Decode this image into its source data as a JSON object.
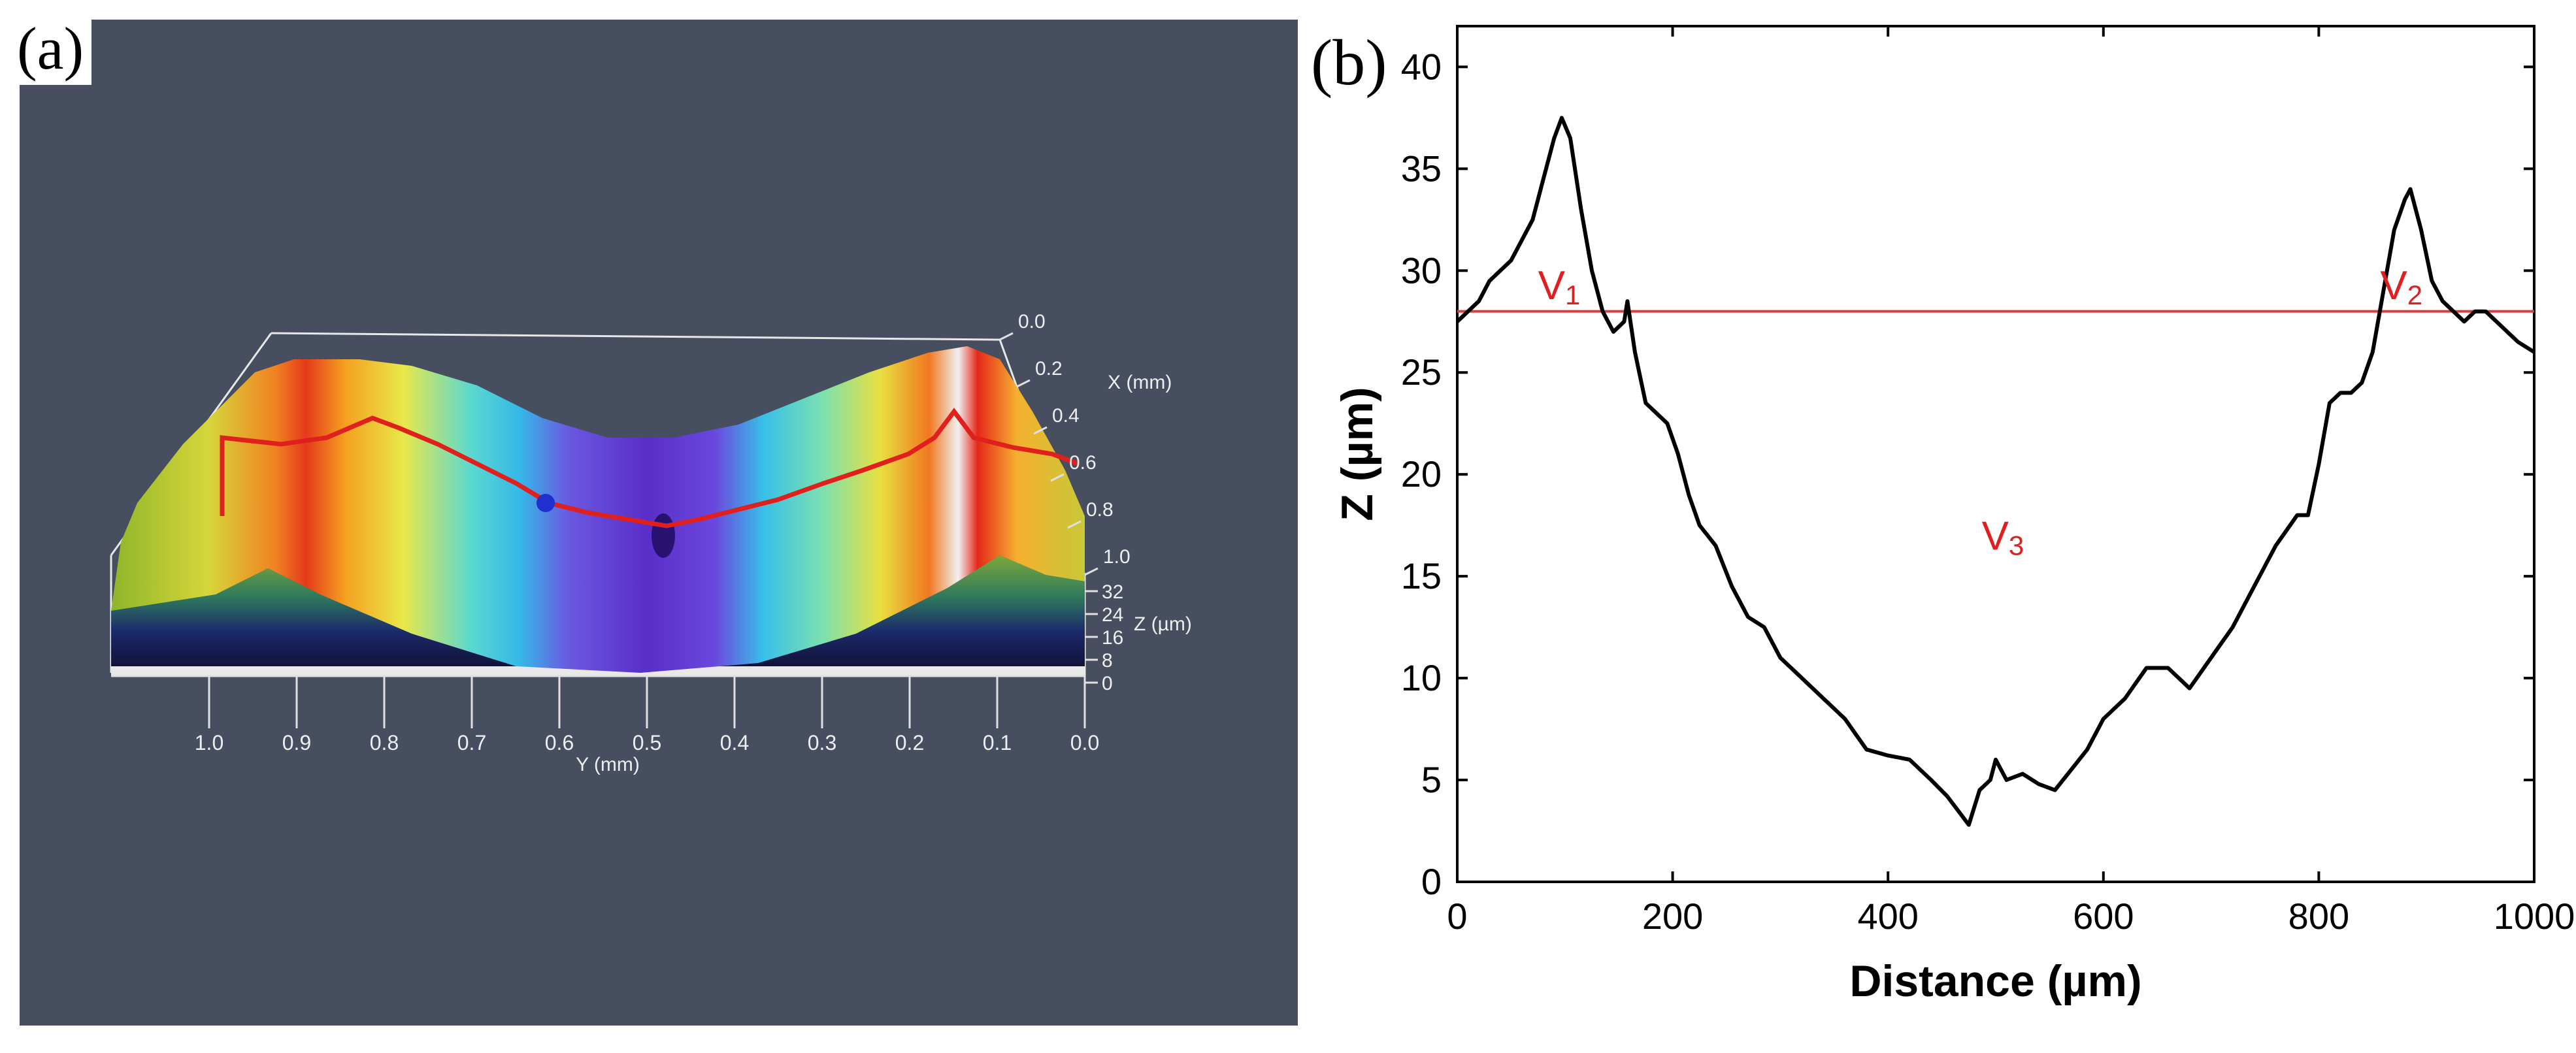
{
  "panel_a": {
    "label": "(a)",
    "x_axis": {
      "label": "X (mm)",
      "ticks": [
        "0.0",
        "0.2",
        "0.4",
        "0.6",
        "0.8",
        "1.0"
      ]
    },
    "y_axis": {
      "label": "Y (mm)",
      "ticks": [
        "1.0",
        "0.9",
        "0.8",
        "0.7",
        "0.6",
        "0.5",
        "0.4",
        "0.3",
        "0.2",
        "0.1",
        "0.0"
      ]
    },
    "z_axis": {
      "label": "Z (µm)",
      "ticks": [
        "32",
        "24",
        "16",
        "8",
        "0"
      ]
    },
    "colors": {
      "background": "#474e60",
      "profile_line": "#e0201c",
      "marker": "#1f2fd0"
    }
  },
  "panel_b": {
    "label": "(b)",
    "annotations": {
      "v1": "V",
      "v1_sub": "1",
      "v2": "V",
      "v2_sub": "2",
      "v3": "V",
      "v3_sub": "3"
    }
  },
  "chart_data": {
    "type": "line",
    "xlabel": "Distance (µm)",
    "ylabel": "Z (µm)",
    "xlim": [
      0,
      1000
    ],
    "ylim": [
      0,
      42
    ],
    "xticks": [
      0,
      200,
      400,
      600,
      800,
      1000
    ],
    "yticks": [
      0,
      5,
      10,
      15,
      20,
      25,
      30,
      35,
      40
    ],
    "grid": false,
    "series": [
      {
        "color": "#000000",
        "x": [
          0,
          10,
          20,
          30,
          40,
          50,
          60,
          70,
          80,
          90,
          97,
          105,
          115,
          125,
          135,
          145,
          155,
          158,
          165,
          175,
          185,
          195,
          205,
          215,
          225,
          240,
          255,
          270,
          285,
          300,
          320,
          340,
          360,
          380,
          400,
          420,
          440,
          455,
          465,
          475,
          485,
          495,
          500,
          510,
          525,
          540,
          555,
          570,
          585,
          600,
          620,
          640,
          660,
          680,
          700,
          720,
          740,
          760,
          780,
          790,
          800,
          810,
          820,
          830,
          840,
          850,
          860,
          870,
          880,
          885,
          895,
          905,
          915,
          925,
          935,
          945,
          955,
          965,
          975,
          985,
          1000
        ],
        "y": [
          27.5,
          28,
          28.5,
          29.5,
          30,
          30.5,
          31.5,
          32.5,
          34.5,
          36.5,
          37.5,
          36.5,
          33,
          30,
          28,
          27,
          27.5,
          28.5,
          26,
          23.5,
          23,
          22.5,
          21,
          19,
          17.5,
          16.5,
          14.5,
          13,
          12.5,
          11,
          10,
          9,
          8,
          6.5,
          6.2,
          6,
          5,
          4.2,
          3.5,
          2.8,
          4.5,
          5,
          6,
          5,
          5.3,
          4.8,
          4.5,
          5.5,
          6.5,
          8,
          9,
          10.5,
          10.5,
          9.5,
          11,
          12.5,
          14.5,
          16.5,
          18,
          18,
          20.5,
          23.5,
          24,
          24,
          24.5,
          26,
          29,
          32,
          33.5,
          34,
          32,
          29.5,
          28.5,
          28,
          27.5,
          28,
          28,
          27.5,
          27,
          26.5,
          26
        ]
      }
    ],
    "hline": {
      "y": 28,
      "color": "#dc3c3c"
    }
  }
}
